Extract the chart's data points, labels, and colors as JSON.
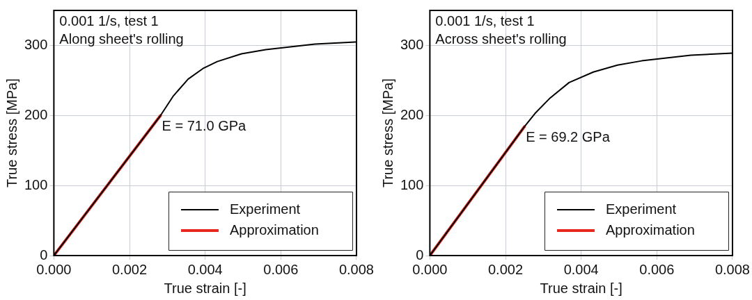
{
  "chart_data": [
    {
      "type": "line",
      "xlabel": "True strain [-]",
      "ylabel": "True stress [MPa]",
      "xlim": [
        0,
        0.008
      ],
      "xticks": [
        {
          "value": 0,
          "label": "0.000"
        },
        0.002,
        0.004,
        0.006,
        0.008
      ],
      "ylim": [
        0,
        350
      ],
      "yticks": [
        0,
        100,
        200,
        300
      ],
      "grid": true,
      "legend": "bottom right",
      "marker": "none",
      "line_style": "solid",
      "annotations": [
        "0.001 1/s, test 1",
        "Along sheet's rolling",
        {
          "text": "E = 71.0 GPa",
          "x": 0.00282,
          "y": 200
        }
      ],
      "series": [
        {
          "name": "Experiment",
          "color": "#000000",
          "x": [
            0,
            0.00282,
            0.00316,
            0.00355,
            0.00394,
            0.00432,
            0.00496,
            0.0056,
            0.00625,
            0.0069,
            0.008
          ],
          "values": [
            0,
            200,
            228,
            252,
            267,
            277,
            288,
            294,
            298,
            302,
            305
          ]
        },
        {
          "name": "Approximation",
          "color": "#e8281e",
          "x": [
            0,
            0.00282
          ],
          "values": [
            0,
            200
          ]
        }
      ]
    },
    {
      "type": "line",
      "xlabel": "True strain [-]",
      "ylabel": "True stress [MPa]",
      "xlim": [
        0,
        0.008
      ],
      "xticks": [
        {
          "value": 0,
          "label": "0.000"
        },
        0.002,
        0.004,
        0.006,
        0.008
      ],
      "ylim": [
        0,
        350
      ],
      "yticks": [
        0,
        100,
        200,
        300
      ],
      "grid": true,
      "legend": "bottom right",
      "marker": "none",
      "line_style": "solid",
      "annotations": [
        "0.001 1/s, test 1",
        "Across sheet's rolling",
        {
          "text": "E = 69.2 GPa",
          "x": 0.0025,
          "y": 184
        }
      ],
      "series": [
        {
          "name": "Experiment",
          "color": "#000000",
          "x": [
            0,
            0.0025,
            0.00278,
            0.00316,
            0.00368,
            0.00432,
            0.00496,
            0.0056,
            0.00625,
            0.0069,
            0.008
          ],
          "values": [
            0,
            184,
            203,
            224,
            247,
            262,
            272,
            278,
            282,
            286,
            289
          ]
        },
        {
          "name": "Approximation",
          "color": "#e8281e",
          "x": [
            0,
            0.0025
          ],
          "values": [
            0,
            184
          ]
        }
      ]
    }
  ]
}
